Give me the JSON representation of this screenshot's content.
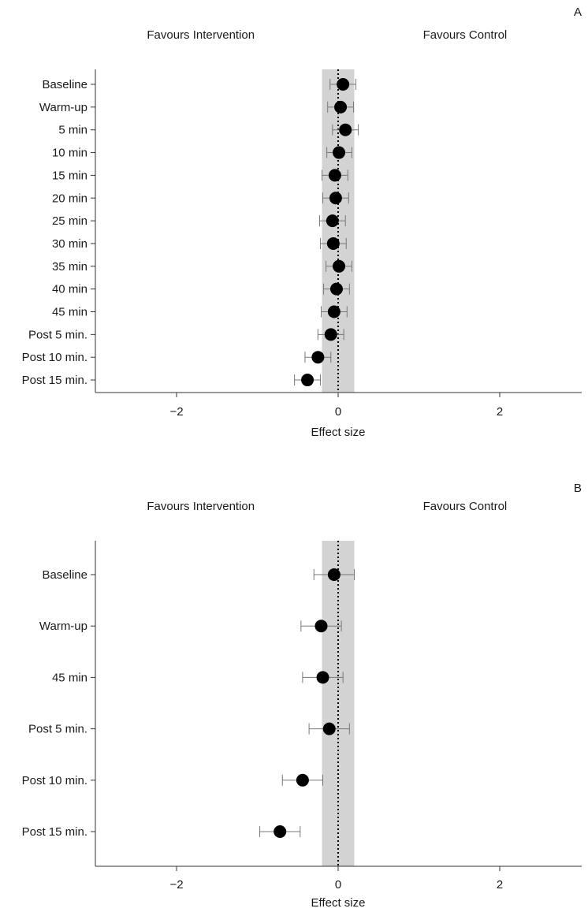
{
  "chart_data": [
    {
      "type": "forest",
      "panel": "A",
      "header_left": "Favours Intervention",
      "header_right": "Favours Control",
      "xlabel": "Effect size",
      "xlim": [
        -3,
        3
      ],
      "xticks": [
        -2,
        0,
        2
      ],
      "xtick_labels": [
        "−2",
        "0",
        "2"
      ],
      "reference_line": 0,
      "shaded_band": [
        -0.2,
        0.2
      ],
      "categories": [
        "Baseline",
        "Warm-up",
        "5 min",
        "10 min",
        "15 min",
        "20 min",
        "25 min",
        "30 min",
        "35 min",
        "40 min",
        "45 min",
        "Post 5 min.",
        "Post 10 min.",
        "Post 15 min."
      ],
      "estimates": [
        0.06,
        0.03,
        0.09,
        0.01,
        -0.04,
        -0.03,
        -0.07,
        -0.06,
        0.01,
        -0.02,
        -0.05,
        -0.09,
        -0.25,
        -0.38
      ],
      "ci_lower": [
        -0.1,
        -0.13,
        -0.07,
        -0.14,
        -0.2,
        -0.19,
        -0.23,
        -0.22,
        -0.15,
        -0.18,
        -0.21,
        -0.25,
        -0.41,
        -0.54
      ],
      "ci_upper": [
        0.22,
        0.19,
        0.25,
        0.17,
        0.12,
        0.13,
        0.09,
        0.1,
        0.17,
        0.14,
        0.11,
        0.07,
        -0.09,
        -0.22
      ]
    },
    {
      "type": "forest",
      "panel": "B",
      "header_left": "Favours Intervention",
      "header_right": "Favours Control",
      "xlabel": "Effect size",
      "xlim": [
        -3,
        3
      ],
      "xticks": [
        -2,
        0,
        2
      ],
      "xtick_labels": [
        "−2",
        "0",
        "2"
      ],
      "reference_line": 0,
      "shaded_band": [
        -0.2,
        0.2
      ],
      "categories": [
        "Baseline",
        "Warm-up",
        "45 min",
        "Post 5 min.",
        "Post 10 min.",
        "Post 15 min."
      ],
      "estimates": [
        -0.05,
        -0.21,
        -0.19,
        -0.11,
        -0.44,
        -0.72
      ],
      "ci_lower": [
        -0.3,
        -0.46,
        -0.44,
        -0.36,
        -0.69,
        -0.97
      ],
      "ci_upper": [
        0.2,
        0.04,
        0.06,
        0.14,
        -0.19,
        -0.47
      ]
    }
  ],
  "colors": {
    "band": "#d3d3d3",
    "marker": "#000000",
    "ci": "#777777",
    "axis": "#333333",
    "text": "#1a1a1a"
  }
}
